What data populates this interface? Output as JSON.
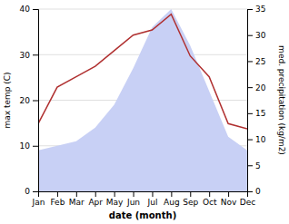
{
  "chart_data": {
    "type": "area",
    "categories": [
      "Jan",
      "Feb",
      "Mar",
      "Apr",
      "May",
      "Jun",
      "Jul",
      "Aug",
      "Sep",
      "Oct",
      "Nov",
      "Dec"
    ],
    "xlabel": "date (month)",
    "ylabel": "max temp (C)",
    "y2label": "med. precipitation (kg/m2)",
    "series": [
      {
        "type": "area",
        "color": "#c8d0f5",
        "values": [
          9,
          10,
          11,
          14,
          19,
          27,
          36,
          40,
          32,
          22,
          12,
          9
        ]
      },
      {
        "type": "line",
        "color": "#b03030",
        "axis": "y2",
        "values": [
          13,
          20,
          22,
          24,
          27,
          30,
          31,
          34,
          26,
          22,
          13,
          12
        ]
      }
    ],
    "ylim": [
      0,
      40
    ],
    "yticks": [
      0,
      10,
      20,
      30,
      40
    ],
    "y2lim": [
      0,
      35
    ],
    "y2ticks": [
      0,
      5,
      10,
      15,
      20,
      25,
      30,
      35
    ],
    "grid": true
  }
}
